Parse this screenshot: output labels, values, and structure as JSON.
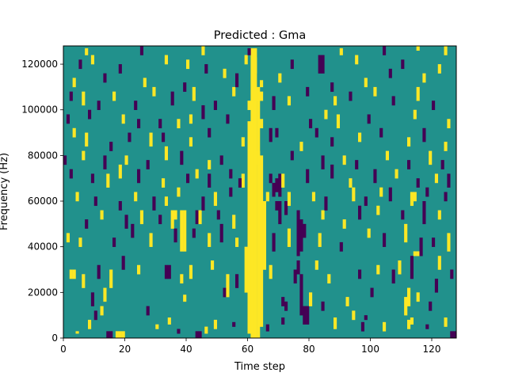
{
  "chart_data": {
    "type": "heatmap",
    "title": "Predicted : Gma",
    "xlabel": "Time step",
    "ylabel": "Frequency (Hz)",
    "xlim": [
      0,
      128
    ],
    "ylim": [
      0,
      128000
    ],
    "x_ticks": [
      0,
      20,
      40,
      60,
      80,
      100,
      120
    ],
    "y_ticks": [
      0,
      20000,
      40000,
      60000,
      80000,
      100000,
      120000
    ],
    "rows": 128,
    "cols": 128,
    "value_levels": [
      0,
      1,
      2
    ],
    "colormap": {
      "0": "#440154",
      "1": "#21918c",
      "2": "#fde725"
    },
    "background_value": 1,
    "grid": false,
    "legend": "none",
    "cells": [
      [
        61,
        0,
        127,
        2
      ],
      [
        62,
        0,
        127,
        2
      ],
      [
        63,
        0,
        110,
        2
      ],
      [
        60,
        2,
        95,
        2
      ],
      [
        64,
        5,
        80,
        2
      ],
      [
        60,
        100,
        104,
        2
      ],
      [
        62,
        104,
        110,
        2
      ],
      [
        64,
        110,
        113,
        2
      ],
      [
        62,
        116,
        123,
        2
      ],
      [
        59,
        20,
        40,
        2
      ],
      [
        65,
        30,
        60,
        2
      ],
      [
        58,
        66,
        72,
        2
      ],
      [
        14,
        0,
        3,
        0
      ],
      [
        15,
        0,
        3,
        0
      ],
      [
        17,
        0,
        3,
        2
      ],
      [
        18,
        0,
        3,
        2
      ],
      [
        19,
        0,
        3,
        2
      ],
      [
        127,
        0,
        3,
        0
      ],
      [
        126,
        0,
        3,
        0
      ],
      [
        4,
        2,
        3,
        2
      ],
      [
        8,
        4,
        8,
        2
      ],
      [
        10,
        8,
        12,
        0
      ],
      [
        12,
        10,
        14,
        2
      ],
      [
        30,
        4,
        6,
        2
      ],
      [
        34,
        6,
        9,
        2
      ],
      [
        37,
        2,
        4,
        0
      ],
      [
        43,
        0,
        3,
        0
      ],
      [
        44,
        0,
        3,
        0
      ],
      [
        46,
        2,
        5,
        2
      ],
      [
        49,
        4,
        8,
        2
      ],
      [
        55,
        5,
        7,
        0
      ],
      [
        66,
        3,
        6,
        0
      ],
      [
        71,
        6,
        9,
        0
      ],
      [
        78,
        6,
        14,
        0
      ],
      [
        79,
        6,
        14,
        0
      ],
      [
        88,
        4,
        9,
        2
      ],
      [
        97,
        3,
        7,
        0
      ],
      [
        98,
        8,
        10,
        0
      ],
      [
        104,
        3,
        7,
        2
      ],
      [
        112,
        4,
        8,
        2
      ],
      [
        113,
        6,
        9,
        2
      ],
      [
        118,
        4,
        6,
        0
      ],
      [
        124,
        5,
        9,
        2
      ],
      [
        9,
        14,
        20,
        0
      ],
      [
        13,
        16,
        22,
        2
      ],
      [
        27,
        10,
        14,
        0
      ],
      [
        39,
        16,
        19,
        2
      ],
      [
        52,
        18,
        22,
        0
      ],
      [
        53,
        18,
        28,
        2
      ],
      [
        71,
        14,
        18,
        0
      ],
      [
        72,
        12,
        16,
        0
      ],
      [
        77,
        10,
        28,
        0
      ],
      [
        80,
        14,
        20,
        2
      ],
      [
        84,
        12,
        16,
        0
      ],
      [
        92,
        14,
        18,
        2
      ],
      [
        94,
        8,
        12,
        2
      ],
      [
        100,
        18,
        22,
        0
      ],
      [
        111,
        10,
        18,
        2
      ],
      [
        112,
        14,
        22,
        2
      ],
      [
        115,
        16,
        20,
        2
      ],
      [
        119,
        12,
        16,
        0
      ],
      [
        121,
        20,
        26,
        0
      ],
      [
        2,
        26,
        30,
        2
      ],
      [
        3,
        26,
        30,
        2
      ],
      [
        6,
        22,
        28,
        2
      ],
      [
        11,
        26,
        32,
        0
      ],
      [
        15,
        22,
        30,
        2
      ],
      [
        19,
        30,
        36,
        0
      ],
      [
        24,
        28,
        32,
        2
      ],
      [
        33,
        26,
        32,
        0
      ],
      [
        34,
        26,
        32,
        0
      ],
      [
        38,
        24,
        28,
        2
      ],
      [
        41,
        26,
        32,
        2
      ],
      [
        48,
        30,
        34,
        2
      ],
      [
        56,
        22,
        28,
        0
      ],
      [
        67,
        26,
        32,
        2
      ],
      [
        75,
        24,
        30,
        0
      ],
      [
        76,
        28,
        34,
        0
      ],
      [
        82,
        30,
        34,
        2
      ],
      [
        86,
        24,
        28,
        2
      ],
      [
        96,
        26,
        30,
        0
      ],
      [
        102,
        28,
        32,
        2
      ],
      [
        107,
        24,
        30,
        0
      ],
      [
        109,
        28,
        34,
        2
      ],
      [
        113,
        26,
        36,
        0
      ],
      [
        114,
        36,
        38,
        2
      ],
      [
        115,
        36,
        38,
        2
      ],
      [
        122,
        30,
        36,
        2
      ],
      [
        126,
        26,
        30,
        0
      ],
      [
        1,
        42,
        46,
        2
      ],
      [
        5,
        40,
        44,
        2
      ],
      [
        16,
        40,
        44,
        0
      ],
      [
        22,
        44,
        50,
        0
      ],
      [
        28,
        40,
        46,
        2
      ],
      [
        36,
        42,
        48,
        0
      ],
      [
        38,
        38,
        56,
        2
      ],
      [
        39,
        38,
        56,
        2
      ],
      [
        42,
        44,
        48,
        0
      ],
      [
        47,
        40,
        46,
        2
      ],
      [
        51,
        42,
        50,
        0
      ],
      [
        56,
        40,
        44,
        2
      ],
      [
        68,
        38,
        46,
        0
      ],
      [
        73,
        40,
        48,
        2
      ],
      [
        76,
        36,
        56,
        0
      ],
      [
        77,
        38,
        52,
        0
      ],
      [
        78,
        44,
        50,
        0
      ],
      [
        83,
        40,
        46,
        2
      ],
      [
        90,
        38,
        42,
        0
      ],
      [
        99,
        44,
        48,
        2
      ],
      [
        104,
        40,
        46,
        0
      ],
      [
        111,
        42,
        50,
        2
      ],
      [
        116,
        36,
        44,
        0
      ],
      [
        120,
        40,
        44,
        0
      ],
      [
        125,
        38,
        46,
        2
      ],
      [
        7,
        48,
        52,
        0
      ],
      [
        12,
        52,
        56,
        2
      ],
      [
        20,
        48,
        54,
        0
      ],
      [
        25,
        50,
        56,
        2
      ],
      [
        31,
        50,
        54,
        0
      ],
      [
        35,
        48,
        56,
        2
      ],
      [
        36,
        52,
        56,
        2
      ],
      [
        43,
        50,
        56,
        0
      ],
      [
        44,
        50,
        56,
        2
      ],
      [
        50,
        52,
        56,
        0
      ],
      [
        55,
        48,
        54,
        2
      ],
      [
        69,
        56,
        60,
        0
      ],
      [
        70,
        50,
        60,
        0
      ],
      [
        72,
        54,
        60,
        0
      ],
      [
        84,
        52,
        56,
        2
      ],
      [
        91,
        48,
        52,
        2
      ],
      [
        96,
        52,
        58,
        0
      ],
      [
        102,
        54,
        58,
        2
      ],
      [
        110,
        52,
        56,
        0
      ],
      [
        117,
        50,
        60,
        0
      ],
      [
        122,
        52,
        56,
        2
      ],
      [
        4,
        60,
        64,
        2
      ],
      [
        10,
        58,
        62,
        0
      ],
      [
        18,
        56,
        60,
        0
      ],
      [
        23,
        60,
        64,
        2
      ],
      [
        29,
        56,
        62,
        0
      ],
      [
        33,
        58,
        62,
        2
      ],
      [
        37,
        62,
        66,
        2
      ],
      [
        45,
        56,
        62,
        0
      ],
      [
        49,
        58,
        64,
        2
      ],
      [
        54,
        62,
        66,
        0
      ],
      [
        66,
        60,
        64,
        2
      ],
      [
        68,
        62,
        68,
        0
      ],
      [
        69,
        64,
        70,
        0
      ],
      [
        70,
        62,
        72,
        0
      ],
      [
        73,
        58,
        64,
        2
      ],
      [
        81,
        60,
        64,
        2
      ],
      [
        85,
        56,
        62,
        0
      ],
      [
        94,
        60,
        66,
        2
      ],
      [
        98,
        58,
        62,
        0
      ],
      [
        103,
        62,
        66,
        2
      ],
      [
        106,
        60,
        66,
        0
      ],
      [
        113,
        58,
        64,
        2
      ],
      [
        114,
        60,
        64,
        2
      ],
      [
        118,
        62,
        66,
        0
      ],
      [
        124,
        60,
        64,
        0
      ],
      [
        2,
        70,
        74,
        0
      ],
      [
        9,
        68,
        72,
        0
      ],
      [
        14,
        66,
        72,
        2
      ],
      [
        18,
        70,
        76,
        2
      ],
      [
        24,
        68,
        74,
        0
      ],
      [
        32,
        66,
        70,
        2
      ],
      [
        40,
        68,
        72,
        0
      ],
      [
        43,
        70,
        74,
        2
      ],
      [
        47,
        66,
        72,
        0
      ],
      [
        54,
        70,
        74,
        0
      ],
      [
        57,
        66,
        70,
        0
      ],
      [
        67,
        68,
        72,
        0
      ],
      [
        71,
        66,
        72,
        2
      ],
      [
        79,
        68,
        74,
        0
      ],
      [
        87,
        70,
        76,
        0
      ],
      [
        93,
        66,
        70,
        2
      ],
      [
        101,
        68,
        74,
        0
      ],
      [
        108,
        70,
        74,
        2
      ],
      [
        115,
        66,
        70,
        0
      ],
      [
        121,
        68,
        72,
        2
      ],
      [
        125,
        66,
        72,
        0
      ],
      [
        0,
        76,
        80,
        0
      ],
      [
        6,
        78,
        82,
        2
      ],
      [
        13,
        74,
        80,
        0
      ],
      [
        20,
        76,
        80,
        2
      ],
      [
        27,
        74,
        78,
        0
      ],
      [
        33,
        78,
        84,
        2
      ],
      [
        38,
        76,
        82,
        0
      ],
      [
        47,
        74,
        78,
        2
      ],
      [
        51,
        76,
        80,
        0
      ],
      [
        63,
        76,
        82,
        2
      ],
      [
        74,
        78,
        82,
        0
      ],
      [
        84,
        74,
        80,
        0
      ],
      [
        91,
        76,
        80,
        2
      ],
      [
        95,
        74,
        78,
        0
      ],
      [
        105,
        78,
        82,
        2
      ],
      [
        112,
        74,
        78,
        0
      ],
      [
        119,
        76,
        82,
        2
      ],
      [
        123,
        74,
        78,
        0
      ],
      [
        3,
        88,
        92,
        2
      ],
      [
        7,
        84,
        90,
        2
      ],
      [
        15,
        82,
        86,
        0
      ],
      [
        21,
        86,
        90,
        0
      ],
      [
        28,
        84,
        90,
        2
      ],
      [
        32,
        86,
        90,
        0
      ],
      [
        41,
        84,
        88,
        2
      ],
      [
        47,
        88,
        92,
        0
      ],
      [
        58,
        84,
        88,
        2
      ],
      [
        67,
        86,
        92,
        0
      ],
      [
        69,
        88,
        92,
        0
      ],
      [
        77,
        82,
        86,
        2
      ],
      [
        82,
        88,
        92,
        0
      ],
      [
        87,
        84,
        88,
        0
      ],
      [
        96,
        86,
        90,
        2
      ],
      [
        103,
        88,
        92,
        0
      ],
      [
        112,
        84,
        88,
        2
      ],
      [
        117,
        86,
        92,
        0
      ],
      [
        124,
        82,
        86,
        2
      ],
      [
        1,
        94,
        98,
        0
      ],
      [
        8,
        96,
        100,
        0
      ],
      [
        19,
        94,
        98,
        2
      ],
      [
        24,
        92,
        96,
        0
      ],
      [
        31,
        92,
        96,
        0
      ],
      [
        37,
        92,
        96,
        2
      ],
      [
        41,
        94,
        98,
        2
      ],
      [
        45,
        96,
        102,
        0
      ],
      [
        53,
        94,
        98,
        0
      ],
      [
        64,
        92,
        96,
        2
      ],
      [
        80,
        92,
        96,
        0
      ],
      [
        85,
        96,
        100,
        2
      ],
      [
        89,
        92,
        98,
        2
      ],
      [
        99,
        94,
        98,
        0
      ],
      [
        114,
        96,
        100,
        2
      ],
      [
        125,
        92,
        96,
        2
      ],
      [
        2,
        104,
        108,
        0
      ],
      [
        6,
        102,
        108,
        2
      ],
      [
        11,
        100,
        104,
        0
      ],
      [
        16,
        104,
        108,
        2
      ],
      [
        23,
        100,
        104,
        0
      ],
      [
        29,
        106,
        110,
        2
      ],
      [
        35,
        102,
        108,
        0
      ],
      [
        42,
        104,
        110,
        2
      ],
      [
        49,
        100,
        104,
        0
      ],
      [
        55,
        106,
        110,
        2
      ],
      [
        64,
        104,
        108,
        2
      ],
      [
        68,
        100,
        106,
        0
      ],
      [
        73,
        102,
        106,
        2
      ],
      [
        79,
        106,
        110,
        0
      ],
      [
        88,
        102,
        106,
        2
      ],
      [
        93,
        104,
        108,
        0
      ],
      [
        101,
        106,
        110,
        2
      ],
      [
        107,
        102,
        106,
        0
      ],
      [
        115,
        104,
        110,
        2
      ],
      [
        120,
        100,
        104,
        0
      ],
      [
        3,
        110,
        114,
        2
      ],
      [
        13,
        112,
        116,
        0
      ],
      [
        26,
        110,
        114,
        2
      ],
      [
        39,
        108,
        112,
        0
      ],
      [
        52,
        114,
        118,
        2
      ],
      [
        56,
        110,
        116,
        0
      ],
      [
        70,
        112,
        116,
        2
      ],
      [
        87,
        108,
        112,
        0
      ],
      [
        98,
        110,
        114,
        2
      ],
      [
        106,
        114,
        118,
        0
      ],
      [
        117,
        112,
        116,
        2
      ],
      [
        5,
        118,
        122,
        0
      ],
      [
        9,
        120,
        124,
        2
      ],
      [
        18,
        116,
        120,
        0
      ],
      [
        33,
        120,
        124,
        2
      ],
      [
        40,
        118,
        122,
        2
      ],
      [
        46,
        116,
        120,
        0
      ],
      [
        59,
        120,
        124,
        2
      ],
      [
        74,
        118,
        122,
        0
      ],
      [
        83,
        116,
        124,
        0
      ],
      [
        84,
        116,
        124,
        0
      ],
      [
        95,
        120,
        124,
        2
      ],
      [
        110,
        118,
        122,
        0
      ],
      [
        122,
        116,
        120,
        2
      ],
      [
        7,
        124,
        127,
        2
      ],
      [
        25,
        124,
        128,
        0
      ],
      [
        45,
        124,
        128,
        2
      ],
      [
        60,
        124,
        127,
        0
      ],
      [
        90,
        124,
        127,
        2
      ],
      [
        104,
        124,
        128,
        0
      ],
      [
        115,
        126,
        128,
        2
      ],
      [
        124,
        124,
        128,
        2
      ]
    ]
  }
}
